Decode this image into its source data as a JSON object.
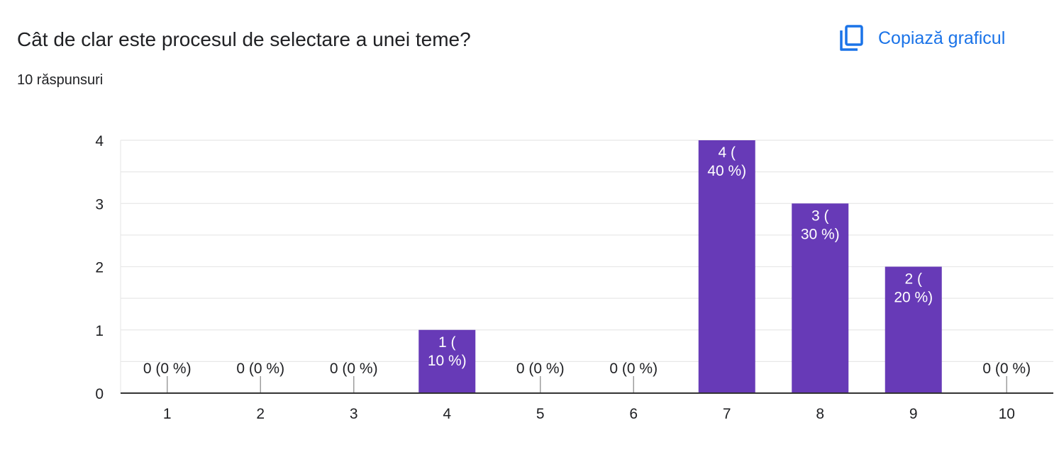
{
  "header": {
    "question": "Cât de clar este procesul de selectare a unei teme?",
    "response_count": "10 răspunsuri",
    "copy_chart_label": "Copiază graficul",
    "copy_icon": "copy-icon"
  },
  "colors": {
    "bar": "#673ab7",
    "accent": "#1a73e8",
    "grid": "#e8e8e8",
    "axis": "#333333",
    "text": "#202124",
    "bar_label": "#ffffff"
  },
  "chart_data": {
    "type": "bar",
    "categories": [
      "1",
      "2",
      "3",
      "4",
      "5",
      "6",
      "7",
      "8",
      "9",
      "10"
    ],
    "values": [
      0,
      0,
      0,
      1,
      0,
      0,
      4,
      3,
      2,
      0
    ],
    "data_labels": [
      "0 (0 %)",
      "0 (0 %)",
      "0 (0 %)",
      "1 ( 10 %)",
      "0 (0 %)",
      "0 (0 %)",
      "4 ( 40 %)",
      "3 ( 30 %)",
      "2 ( 20 %)",
      "0 (0 %)"
    ],
    "y_ticks": [
      0,
      1,
      2,
      3,
      4
    ],
    "ylim": [
      0,
      4
    ],
    "title": "",
    "xlabel": "",
    "ylabel": "",
    "grid": true,
    "legend": "none"
  }
}
